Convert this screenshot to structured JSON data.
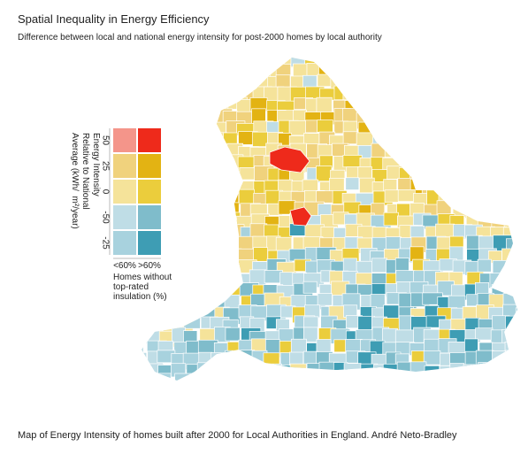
{
  "title": "Spatial Inequality in Energy Efficiency",
  "subtitle": "Difference between local and national energy intensity for post-2000 homes by local authority",
  "caption": "Map of Energy Intensity of homes built after 2000 for Local Authorities in England. André Neto-Bradley",
  "legend": {
    "title_lines": [
      "Energy Intensity",
      "Relative to National",
      "Average (kWh/  m²/year)"
    ],
    "row_labels": [
      "50",
      "25",
      "0",
      "-50",
      "-25"
    ],
    "column_labels": [
      "<60%",
      ">60%"
    ],
    "column_title_lines": [
      "Homes without",
      "top-rated",
      "insulation (%)"
    ],
    "colors": [
      [
        "#f4958a",
        "#ee2a1b"
      ],
      [
        "#f0d27d",
        "#e3b313"
      ],
      [
        "#f5e39a",
        "#ebcd3c"
      ],
      [
        "#bfdde6",
        "#7fbccb"
      ],
      [
        "#a8d2de",
        "#3e9db4"
      ]
    ]
  }
}
